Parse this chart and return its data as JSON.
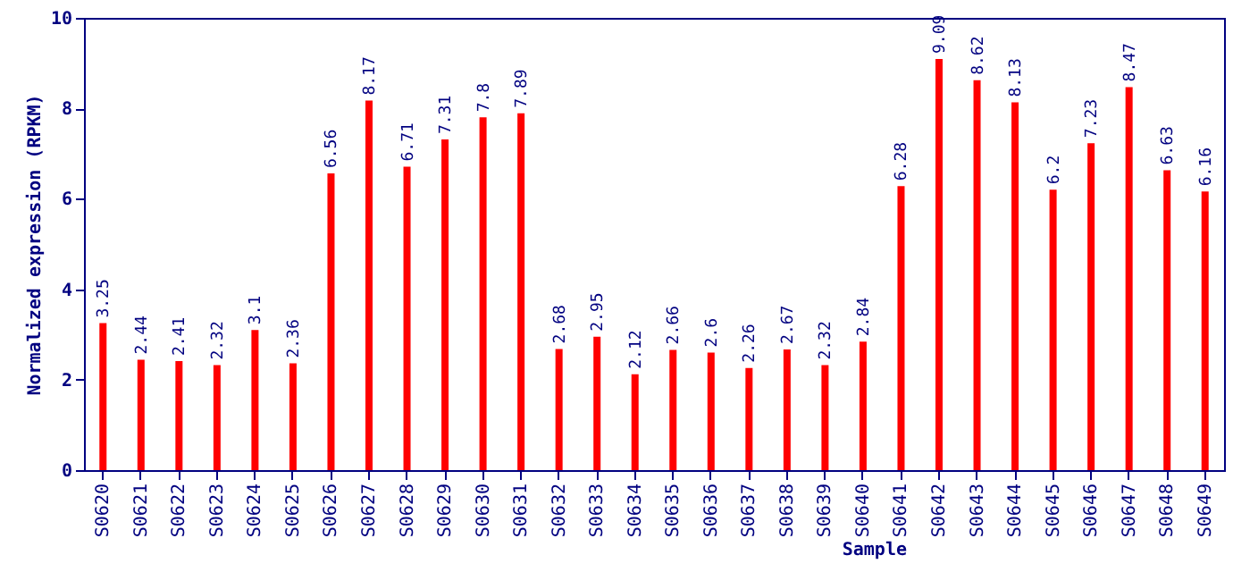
{
  "chart_data": {
    "type": "bar",
    "xlabel": "Sample",
    "ylabel": "Normalized expression (RPKM)",
    "categories": [
      "S0620",
      "S0621",
      "S0622",
      "S0623",
      "S0624",
      "S0625",
      "S0626",
      "S0627",
      "S0628",
      "S0629",
      "S0630",
      "S0631",
      "S0632",
      "S0633",
      "S0634",
      "S0635",
      "S0636",
      "S0637",
      "S0638",
      "S0639",
      "S0640",
      "S0641",
      "S0642",
      "S0643",
      "S0644",
      "S0645",
      "S0646",
      "S0647",
      "S0648",
      "S0649"
    ],
    "values": [
      3.25,
      2.44,
      2.41,
      2.32,
      3.1,
      2.36,
      6.56,
      8.17,
      6.71,
      7.31,
      7.8,
      7.89,
      2.68,
      2.95,
      2.12,
      2.66,
      2.6,
      2.26,
      2.67,
      2.32,
      2.84,
      6.28,
      9.09,
      8.62,
      8.13,
      6.2,
      7.23,
      8.47,
      6.63,
      6.16
    ],
    "color": "#ff0000",
    "ylim": [
      0,
      10
    ],
    "yticks": [
      0,
      2,
      4,
      6,
      8,
      10
    ],
    "data_labels": true,
    "grid": false
  }
}
